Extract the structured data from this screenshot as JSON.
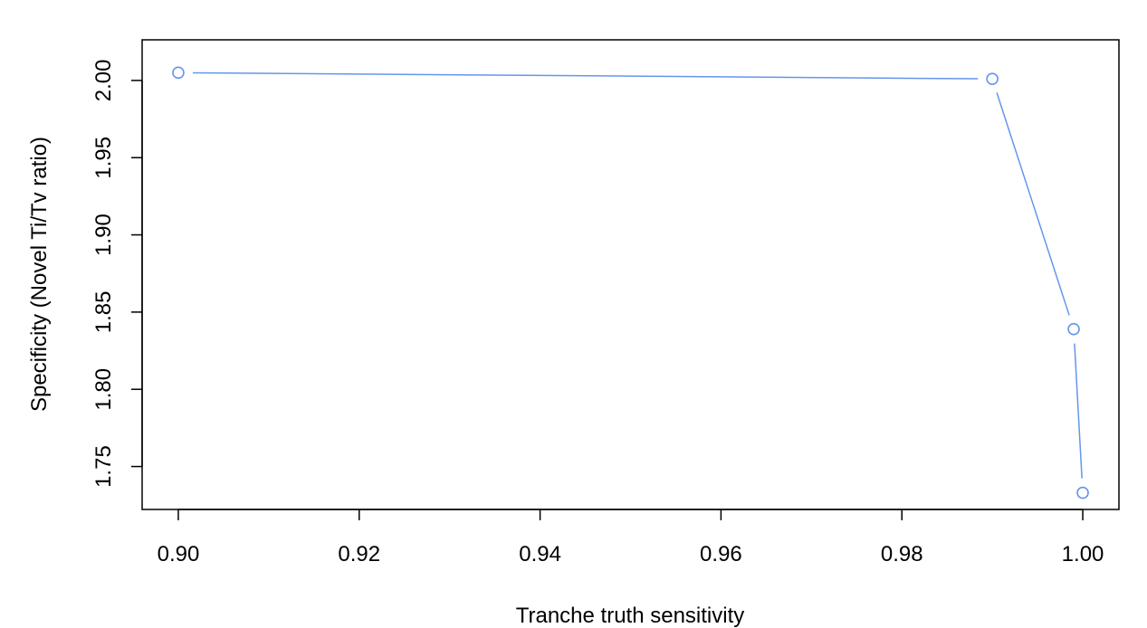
{
  "chart_data": {
    "type": "line",
    "title": "",
    "xlabel": "Tranche truth sensitivity",
    "ylabel": "Specificity (Novel Ti/Tv ratio)",
    "xlim": [
      0.896,
      1.004
    ],
    "ylim": [
      1.7222,
      2.0263
    ],
    "x_ticks": [
      0.9,
      0.92,
      0.94,
      0.96,
      0.98,
      1.0
    ],
    "x_tick_labels": [
      "0.90",
      "0.92",
      "0.94",
      "0.96",
      "0.98",
      "1.00"
    ],
    "y_ticks": [
      1.75,
      1.8,
      1.85,
      1.9,
      1.95,
      2.0
    ],
    "y_tick_labels": [
      "1.75",
      "1.80",
      "1.85",
      "1.90",
      "1.95",
      "2.00"
    ],
    "grid": false,
    "series": [
      {
        "x": [
          0.9,
          0.99,
          0.999,
          1.0
        ],
        "y": [
          2.005,
          2.001,
          1.839,
          1.733
        ],
        "color": "#6495ED",
        "marker": "open-circle"
      }
    ]
  }
}
